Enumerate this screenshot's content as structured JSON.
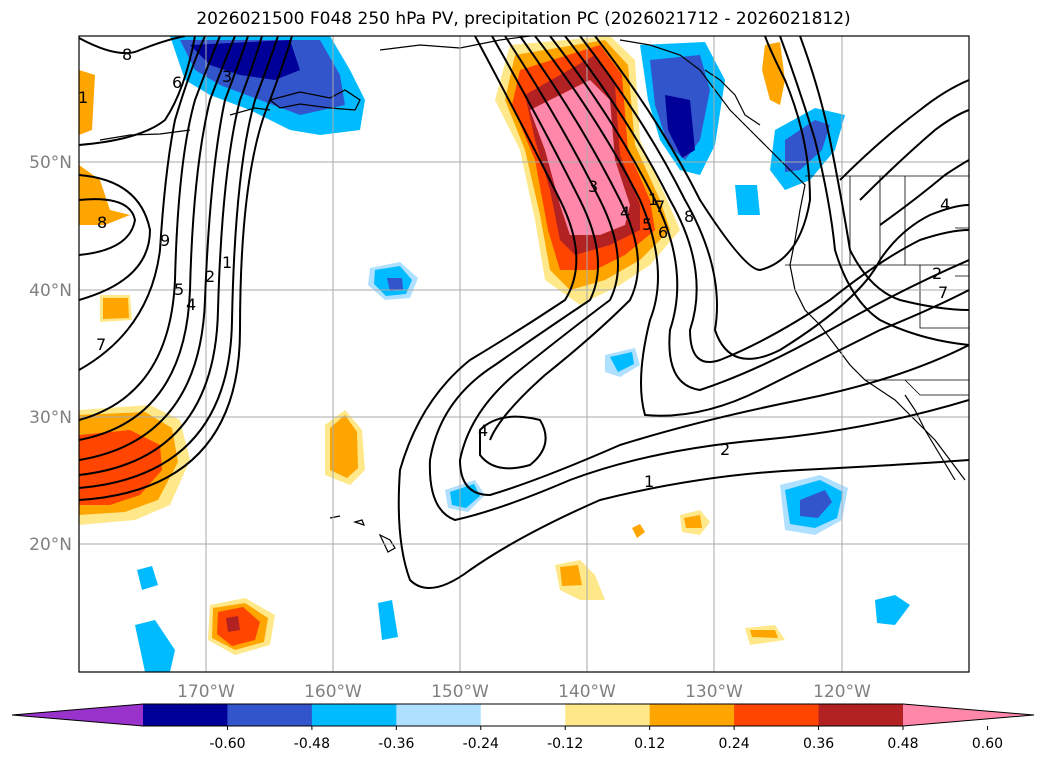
{
  "title": "2026021500 F048 250 hPa PV, precipitation PC (2026021712 - 2026021812)",
  "lat_labels": [
    "50°N",
    "40°N",
    "30°N",
    "20°N"
  ],
  "lon_labels": [
    "170°W",
    "160°W",
    "150°W",
    "140°W",
    "130°W",
    "120°W"
  ],
  "colorbar": {
    "colors": [
      "#9933cc",
      "#000099",
      "#3355cc",
      "#00bbff",
      "#b0e0ff",
      "#ffffff",
      "#ffe88a",
      "#ffa500",
      "#ff4500",
      "#b22222",
      "#ff88aa"
    ],
    "ticks": [
      "-0.60",
      "-0.48",
      "-0.36",
      "-0.24",
      "-0.12",
      "0.12",
      "0.24",
      "0.36",
      "0.48",
      "0.60"
    ]
  },
  "contour_labels": [
    "8",
    "6",
    "3",
    "9",
    "2",
    "1",
    "5",
    "4",
    "7",
    "1",
    "8",
    "2",
    "1",
    "3",
    "4",
    "5",
    "6",
    "7",
    "4",
    "8",
    "4",
    "7",
    "2",
    "1"
  ]
}
